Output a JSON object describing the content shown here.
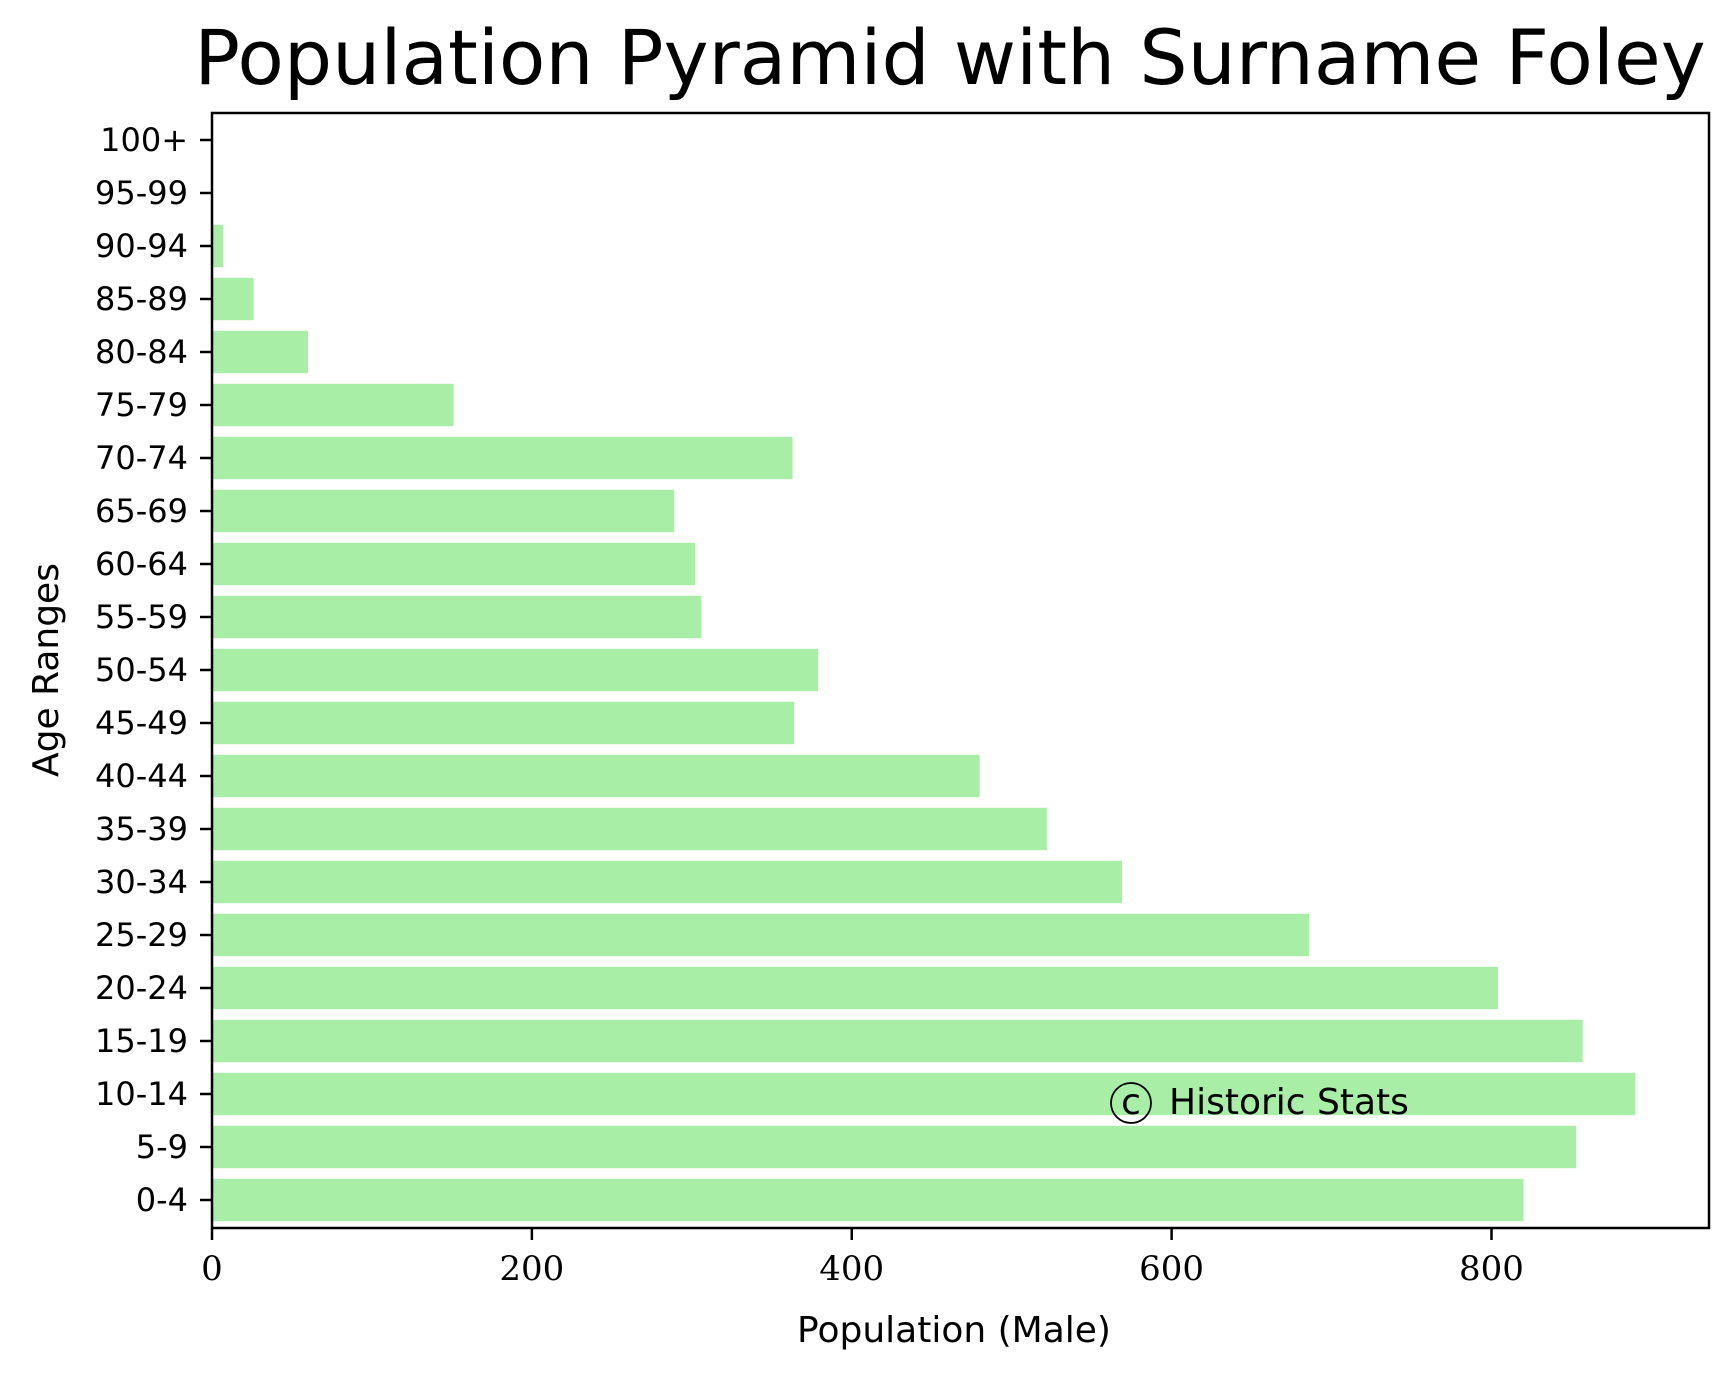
{
  "chart_data": {
    "type": "bar",
    "orientation": "horizontal",
    "title": "Population Pyramid with Surname Foley",
    "xlabel": "Population (Male)",
    "ylabel": "Age Ranges",
    "xlim": [
      0,
      936
    ],
    "xticks": [
      0,
      200,
      400,
      600,
      800
    ],
    "categories": [
      "0-4",
      "5-9",
      "10-14",
      "15-19",
      "20-24",
      "25-29",
      "30-34",
      "35-39",
      "40-44",
      "45-49",
      "50-54",
      "55-59",
      "60-64",
      "65-69",
      "70-74",
      "75-79",
      "80-84",
      "85-89",
      "90-94",
      "95-99",
      "100+"
    ],
    "values": [
      820,
      853,
      890,
      857,
      804,
      686,
      569,
      522,
      480,
      364,
      379,
      306,
      302,
      289,
      363,
      151,
      60,
      26,
      7,
      0,
      0
    ],
    "bar_color": "#a8eea6",
    "grid": false
  },
  "watermark": {
    "symbol": "c",
    "text": "Historic Stats"
  }
}
